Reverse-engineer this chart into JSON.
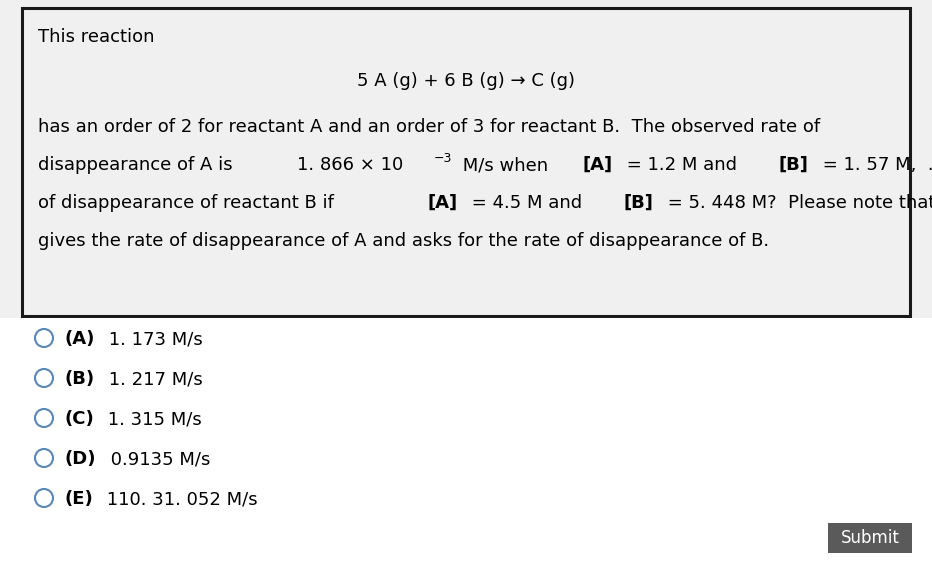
{
  "bg_color": "#f0f0f0",
  "box_bg": "#f0f0f0",
  "box_border": "#1a1a1a",
  "white_bg": "#ffffff",
  "title_text": "This reaction",
  "reaction_equation": "5 A (g) + 6 B (g) → C (g)",
  "line1": "has an order of 2 for reactant A and an order of 3 for reactant B.  The observed rate of",
  "line4": "gives the rate of disappearance of A and asks for the rate of disappearance of B.",
  "options": [
    {
      "label": "A",
      "value": "1. 173 M/s"
    },
    {
      "label": "B",
      "value": "1. 217 M/s"
    },
    {
      "label": "C",
      "value": "1. 315 M/s"
    },
    {
      "label": "D",
      "value": "0.9135 M/s"
    },
    {
      "label": "E",
      "value": "110. 31. 052 M/s"
    }
  ],
  "submit_bg": "#5a5a5a",
  "submit_text": "Submit",
  "submit_text_color": "#ffffff",
  "circle_color": "#5588bb",
  "font_size_main": 13,
  "font_size_reaction": 13,
  "font_size_options": 13,
  "font_size_super": 9
}
